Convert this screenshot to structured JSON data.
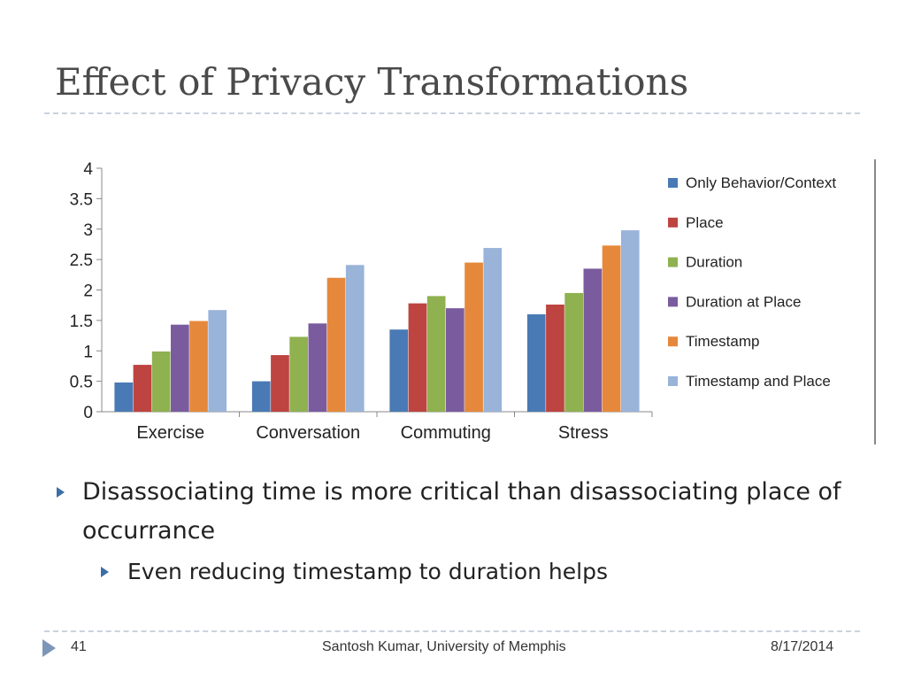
{
  "slide": {
    "title": "Effect of Privacy Transformations",
    "bullets": [
      "Disassociating time is more critical than disassociating place of occurrance",
      "Even reducing timestamp to duration helps"
    ],
    "footer": {
      "slide_number": "41",
      "center": "Santosh Kumar, University of Memphis",
      "date": "8/17/2014"
    }
  },
  "chart_data": {
    "type": "bar",
    "categories": [
      "Exercise",
      "Conversation",
      "Commuting",
      "Stress"
    ],
    "series": [
      {
        "name": "Only Behavior/Context",
        "color": "#4a7ab5",
        "values": [
          0.48,
          0.5,
          1.35,
          1.6
        ]
      },
      {
        "name": "Place",
        "color": "#bd4440",
        "values": [
          0.77,
          0.93,
          1.78,
          1.76
        ]
      },
      {
        "name": "Duration",
        "color": "#8fb150",
        "values": [
          0.99,
          1.23,
          1.9,
          1.95
        ]
      },
      {
        "name": "Duration at Place",
        "color": "#7a5c9e",
        "values": [
          1.43,
          1.45,
          1.7,
          2.35
        ]
      },
      {
        "name": "Timestamp",
        "color": "#e6883b",
        "values": [
          1.49,
          2.2,
          2.45,
          2.73
        ]
      },
      {
        "name": "Timestamp and Place",
        "color": "#99b3d9",
        "values": [
          1.67,
          2.41,
          2.69,
          2.98
        ]
      }
    ],
    "yticks": [
      "0",
      "0.5",
      "1",
      "1.5",
      "2",
      "2.5",
      "3",
      "3.5",
      "4"
    ],
    "ylim": [
      0,
      4
    ],
    "grid": false,
    "legend": "right"
  }
}
